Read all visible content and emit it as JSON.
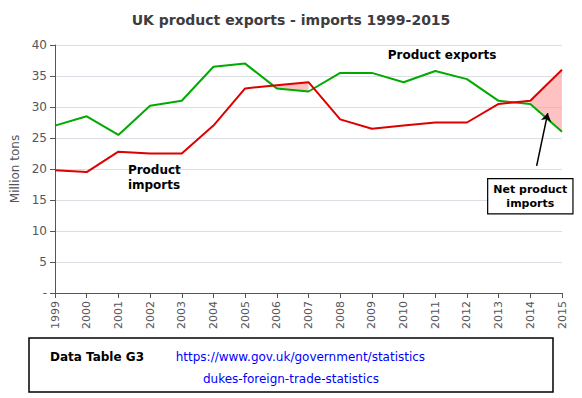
{
  "chart_data": {
    "type": "line",
    "title": "UK product exports - imports 1999-2015",
    "ylabel": "Million tons",
    "x": [
      1999,
      2000,
      2001,
      2002,
      2003,
      2004,
      2005,
      2006,
      2007,
      2008,
      2009,
      2010,
      2011,
      2012,
      2013,
      2014,
      2015
    ],
    "series": [
      {
        "name": "Product exports",
        "color": "#00AA00",
        "values": [
          27.0,
          28.5,
          25.5,
          30.2,
          31.0,
          36.5,
          37.0,
          33.0,
          32.5,
          35.5,
          35.5,
          34.0,
          35.8,
          34.5,
          31.0,
          30.5,
          26.0
        ]
      },
      {
        "name": "Product\nimports",
        "color": "#DD0000",
        "values": [
          19.8,
          19.5,
          22.8,
          22.5,
          22.5,
          27.0,
          33.0,
          33.5,
          34.0,
          28.0,
          26.5,
          27.0,
          27.5,
          27.5,
          30.5,
          31.0,
          36.0
        ]
      }
    ],
    "xlim": [
      1999,
      2015
    ],
    "xticks": [
      1999,
      2000,
      2001,
      2002,
      2003,
      2004,
      2005,
      2006,
      2007,
      2008,
      2009,
      2010,
      2011,
      2012,
      2013,
      2014,
      2015
    ],
    "ylim": [
      0,
      40
    ],
    "yticks": [
      {
        "value": 0,
        "label": "-"
      },
      5,
      10,
      15,
      20,
      25,
      30,
      35,
      40
    ],
    "grid": true,
    "annotations": [
      {
        "text": "Net product\nimports",
        "color": "#FF9999"
      },
      {
        "text": "Data Table G3"
      },
      {
        "text": "https://www.gov.uk/government/statistics",
        "color": "blue"
      },
      {
        "text": "dukes-foreign-trade-statistics",
        "color": "blue"
      }
    ]
  }
}
